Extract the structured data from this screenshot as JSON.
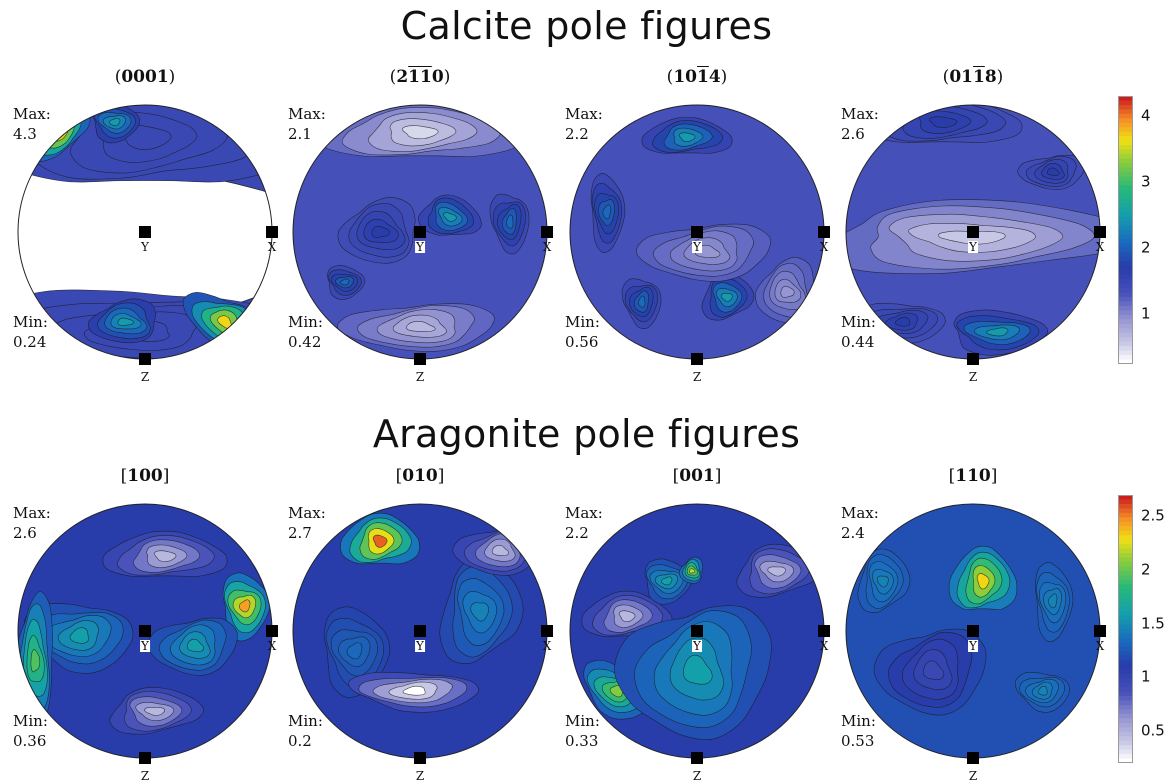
{
  "sections": [
    {
      "title": "Calcite pole figures",
      "colorbar": {
        "min": 0.24,
        "max": 4.3,
        "ticks": [
          "4",
          "3",
          "2",
          "1"
        ],
        "tick_values": [
          4,
          3,
          2,
          1
        ]
      },
      "figures": [
        {
          "title_open": "(",
          "title_parts": [
            {
              "t": "0001",
              "bar": false
            }
          ],
          "title_close": ")",
          "max_label": "Max:",
          "max": "4.3",
          "min_label": "Min:",
          "min": "0.24",
          "pattern": "c1"
        },
        {
          "title_open": "(",
          "title_parts": [
            {
              "t": "2",
              "bar": false
            },
            {
              "t": "1",
              "bar": true
            },
            {
              "t": "1",
              "bar": true
            },
            {
              "t": "0",
              "bar": false
            }
          ],
          "title_close": ")",
          "max_label": "Max:",
          "max": "2.1",
          "min_label": "Min:",
          "min": "0.42",
          "pattern": "c2"
        },
        {
          "title_open": "(",
          "title_parts": [
            {
              "t": "10",
              "bar": false
            },
            {
              "t": "1",
              "bar": true
            },
            {
              "t": "4",
              "bar": false
            }
          ],
          "title_close": ")",
          "max_label": "Max:",
          "max": "2.2",
          "min_label": "Min:",
          "min": "0.56",
          "pattern": "c3"
        },
        {
          "title_open": "(",
          "title_parts": [
            {
              "t": "01",
              "bar": false
            },
            {
              "t": "1",
              "bar": true
            },
            {
              "t": "8",
              "bar": false
            }
          ],
          "title_close": ")",
          "max_label": "Max:",
          "max": "2.6",
          "min_label": "Min:",
          "min": "0.44",
          "pattern": "c4"
        }
      ]
    },
    {
      "title": "Aragonite pole figures",
      "colorbar": {
        "min": 0.2,
        "max": 2.7,
        "ticks": [
          "2.5",
          "2",
          "1.5",
          "1",
          "0.5"
        ],
        "tick_values": [
          2.5,
          2,
          1.5,
          1,
          0.5
        ]
      },
      "figures": [
        {
          "title_open": "[",
          "title_parts": [
            {
              "t": "100",
              "bar": false
            }
          ],
          "title_close": "]",
          "max_label": "Max:",
          "max": "2.6",
          "min_label": "Min:",
          "min": "0.36",
          "pattern": "a1"
        },
        {
          "title_open": "[",
          "title_parts": [
            {
              "t": "010",
              "bar": false
            }
          ],
          "title_close": "]",
          "max_label": "Max:",
          "max": "2.7",
          "min_label": "Min:",
          "min": "0.2",
          "pattern": "a2"
        },
        {
          "title_open": "[",
          "title_parts": [
            {
              "t": "001",
              "bar": false
            }
          ],
          "title_close": "]",
          "max_label": "Max:",
          "max": "2.2",
          "min_label": "Min:",
          "min": "0.33",
          "pattern": "a3"
        },
        {
          "title_open": "[",
          "title_parts": [
            {
              "t": "110",
              "bar": false
            }
          ],
          "title_close": "]",
          "max_label": "Max:",
          "max": "2.4",
          "min_label": "Min:",
          "min": "0.53",
          "pattern": "a4"
        }
      ]
    }
  ],
  "axis_letters": {
    "x": "X",
    "y": "Y",
    "z": "Z"
  },
  "chart_data": [
    {
      "type": "heatmap",
      "title": "Calcite pole figures",
      "projection": "stereographic pole figure",
      "panels": [
        {
          "name": "(0001)",
          "max": 4.3,
          "min": 0.24
        },
        {
          "name": "(2-1-10)",
          "max": 2.1,
          "min": 0.42
        },
        {
          "name": "(10-14)",
          "max": 2.2,
          "min": 0.56
        },
        {
          "name": "(01-18)",
          "max": 2.6,
          "min": 0.44
        }
      ],
      "colorbar_ticks": [
        1,
        2,
        3,
        4
      ],
      "colormap": "white-blue-green-yellow-red"
    },
    {
      "type": "heatmap",
      "title": "Aragonite pole figures",
      "projection": "stereographic pole figure",
      "panels": [
        {
          "name": "[100]",
          "max": 2.6,
          "min": 0.36
        },
        {
          "name": "[010]",
          "max": 2.7,
          "min": 0.2
        },
        {
          "name": "[001]",
          "max": 2.2,
          "min": 0.33
        },
        {
          "name": "[110]",
          "max": 2.4,
          "min": 0.53
        }
      ],
      "colorbar_ticks": [
        0.5,
        1,
        1.5,
        2,
        2.5
      ],
      "colormap": "white-blue-green-yellow-red"
    }
  ]
}
